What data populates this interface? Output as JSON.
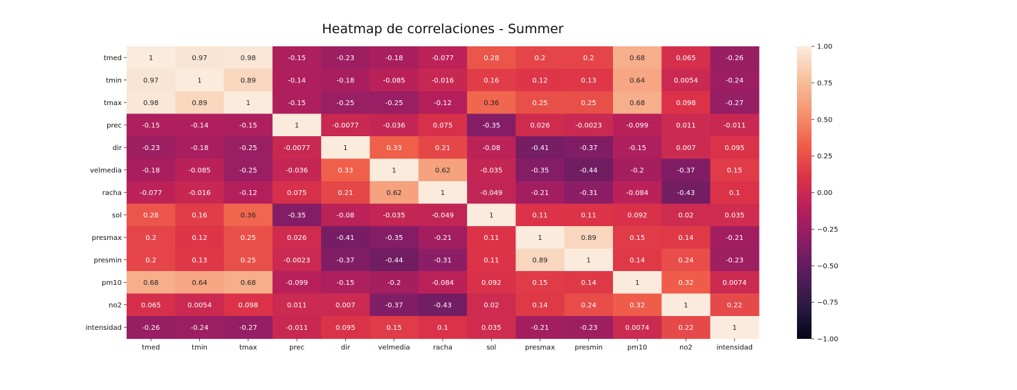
{
  "chart_data": {
    "type": "heatmap",
    "title": "Heatmap de correlaciones - Summer",
    "xlabel": "",
    "ylabel": "",
    "rows": [
      "tmed",
      "tmin",
      "tmax",
      "prec",
      "dir",
      "velmedia",
      "racha",
      "sol",
      "presmax",
      "presmin",
      "pm10",
      "no2",
      "intensidad"
    ],
    "columns": [
      "tmed",
      "tmin",
      "tmax",
      "prec",
      "dir",
      "velmedia",
      "racha",
      "sol",
      "presmax",
      "presmin",
      "pm10",
      "no2",
      "intensidad"
    ],
    "values": [
      [
        1,
        0.97,
        0.98,
        -0.15,
        -0.23,
        -0.18,
        -0.077,
        0.28,
        0.2,
        0.2,
        0.68,
        0.065,
        -0.26
      ],
      [
        0.97,
        1,
        0.89,
        -0.14,
        -0.18,
        -0.085,
        -0.016,
        0.16,
        0.12,
        0.13,
        0.64,
        0.0054,
        -0.24
      ],
      [
        0.98,
        0.89,
        1,
        -0.15,
        -0.25,
        -0.25,
        -0.12,
        0.36,
        0.25,
        0.25,
        0.68,
        0.098,
        -0.27
      ],
      [
        -0.15,
        -0.14,
        -0.15,
        1,
        -0.0077,
        -0.036,
        0.075,
        -0.35,
        0.026,
        -0.0023,
        -0.099,
        0.011,
        -0.011
      ],
      [
        -0.23,
        -0.18,
        -0.25,
        -0.0077,
        1,
        0.33,
        0.21,
        -0.08,
        -0.41,
        -0.37,
        -0.15,
        0.007,
        0.095
      ],
      [
        -0.18,
        -0.085,
        -0.25,
        -0.036,
        0.33,
        1,
        0.62,
        -0.035,
        -0.35,
        -0.44,
        -0.2,
        -0.37,
        0.15
      ],
      [
        -0.077,
        -0.016,
        -0.12,
        0.075,
        0.21,
        0.62,
        1,
        -0.049,
        -0.21,
        -0.31,
        -0.084,
        -0.43,
        0.1
      ],
      [
        0.28,
        0.16,
        0.36,
        -0.35,
        -0.08,
        -0.035,
        -0.049,
        1,
        0.11,
        0.11,
        0.092,
        0.02,
        0.035
      ],
      [
        0.2,
        0.12,
        0.25,
        0.026,
        -0.41,
        -0.35,
        -0.21,
        0.11,
        1,
        0.89,
        0.15,
        0.14,
        -0.21
      ],
      [
        0.2,
        0.13,
        0.25,
        -0.0023,
        -0.37,
        -0.44,
        -0.31,
        0.11,
        0.89,
        1,
        0.14,
        0.24,
        -0.23
      ],
      [
        0.68,
        0.64,
        0.68,
        -0.099,
        -0.15,
        -0.2,
        -0.084,
        0.092,
        0.15,
        0.14,
        1,
        0.32,
        0.0074
      ],
      [
        0.065,
        0.0054,
        0.098,
        0.011,
        0.007,
        -0.37,
        -0.43,
        0.02,
        0.14,
        0.24,
        0.32,
        1,
        0.22
      ],
      [
        -0.26,
        -0.24,
        -0.27,
        -0.011,
        0.095,
        0.15,
        0.1,
        0.035,
        -0.21,
        -0.23,
        0.0074,
        0.22,
        1
      ]
    ],
    "value_range": [
      -1.0,
      1.0
    ],
    "colorbar_ticks": [
      1.0,
      0.75,
      0.5,
      0.25,
      0.0,
      -0.25,
      -0.5,
      -0.75,
      -1.0
    ],
    "colorbar_tick_labels": [
      "1.00",
      "0.75",
      "0.50",
      "0.25",
      "0.00",
      "−0.25",
      "−0.50",
      "−0.75",
      "−1.00"
    ],
    "colormap": "rocket",
    "colormap_stops": [
      "#03051a",
      "#2b1a43",
      "#571d5b",
      "#881d67",
      "#b61f5b",
      "#dd3348",
      "#f0604a",
      "#f69572",
      "#f6c29e",
      "#faebdd"
    ],
    "grid": false,
    "legend": "colorbar-right"
  }
}
